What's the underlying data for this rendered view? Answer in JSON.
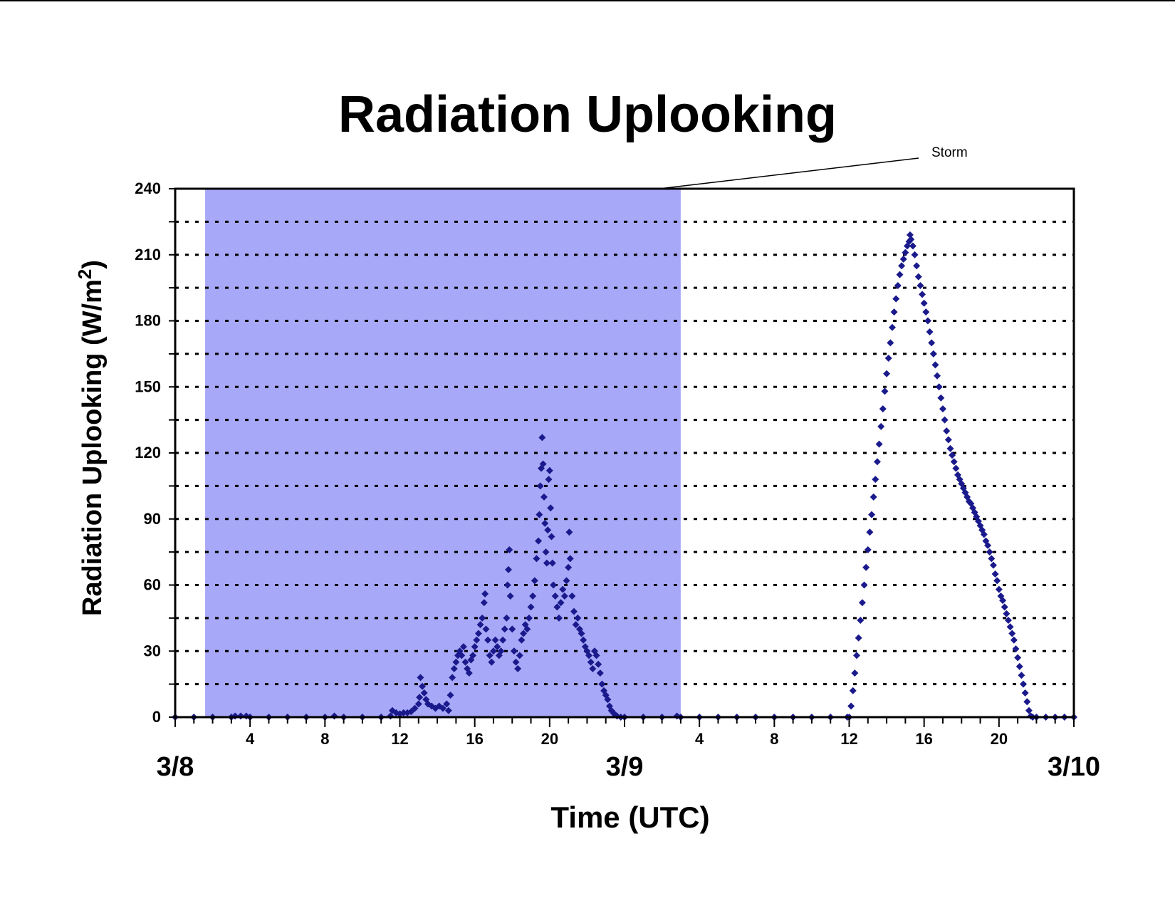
{
  "chart_data": {
    "type": "scatter",
    "title": "Radiation Uplooking",
    "xlabel": "Time (UTC)",
    "ylabel": "Radiation Uplooking (W/m",
    "ylabel_sup": "2",
    "ylabel_close": ")",
    "ylim": [
      0,
      240
    ],
    "y_ticks": [
      0,
      30,
      60,
      90,
      120,
      150,
      180,
      210,
      240
    ],
    "y_minor_step": 15,
    "xlim_hours": [
      0,
      48
    ],
    "x_hour_labels": [
      {
        "h": 4,
        "label": "4"
      },
      {
        "h": 8,
        "label": "8"
      },
      {
        "h": 12,
        "label": "12"
      },
      {
        "h": 16,
        "label": "16"
      },
      {
        "h": 20,
        "label": "20"
      },
      {
        "h": 28,
        "label": "4"
      },
      {
        "h": 32,
        "label": "8"
      },
      {
        "h": 36,
        "label": "12"
      },
      {
        "h": 40,
        "label": "16"
      },
      {
        "h": 44,
        "label": "20"
      }
    ],
    "x_date_labels": [
      {
        "h": 0,
        "label": "3/8"
      },
      {
        "h": 24,
        "label": "3/9"
      },
      {
        "h": 48,
        "label": "3/10"
      }
    ],
    "grid": "horizontal-dotted",
    "marker_color": "#1a1a8c",
    "storm": {
      "label": "Storm",
      "start_h": 1.6,
      "end_h": 27.0,
      "color": "#a8a8f8"
    },
    "series": [
      {
        "points": [
          [
            0,
            0
          ],
          [
            1,
            0
          ],
          [
            2,
            0
          ],
          [
            3,
            0
          ],
          [
            3.2,
            0.5
          ],
          [
            3.5,
            0.5
          ],
          [
            3.8,
            0.5
          ],
          [
            4,
            0
          ],
          [
            5,
            0
          ],
          [
            6,
            0
          ],
          [
            7,
            0
          ],
          [
            8,
            0
          ],
          [
            8.5,
            0.5
          ],
          [
            9,
            0
          ],
          [
            10,
            0
          ],
          [
            11,
            0
          ],
          [
            11.5,
            0.5
          ],
          [
            11.6,
            3
          ],
          [
            11.8,
            2
          ],
          [
            12,
            1.5
          ],
          [
            12.2,
            2
          ],
          [
            12.4,
            2
          ],
          [
            12.6,
            2.5
          ],
          [
            12.8,
            4
          ],
          [
            13,
            6
          ],
          [
            13.05,
            9
          ],
          [
            13.1,
            18
          ],
          [
            13.2,
            14
          ],
          [
            13.3,
            11
          ],
          [
            13.4,
            8
          ],
          [
            13.5,
            6
          ],
          [
            13.7,
            5
          ],
          [
            13.9,
            4
          ],
          [
            14.1,
            5
          ],
          [
            14.3,
            4
          ],
          [
            14.5,
            6
          ],
          [
            14.6,
            3
          ],
          [
            14.7,
            10
          ],
          [
            14.8,
            18
          ],
          [
            14.9,
            22
          ],
          [
            15.0,
            25
          ],
          [
            15.1,
            28
          ],
          [
            15.2,
            30
          ],
          [
            15.3,
            28
          ],
          [
            15.4,
            32
          ],
          [
            15.5,
            25
          ],
          [
            15.6,
            22
          ],
          [
            15.7,
            20
          ],
          [
            15.8,
            26
          ],
          [
            15.9,
            28
          ],
          [
            16.0,
            32
          ],
          [
            16.1,
            35
          ],
          [
            16.2,
            38
          ],
          [
            16.3,
            42
          ],
          [
            16.4,
            45
          ],
          [
            16.5,
            52
          ],
          [
            16.55,
            56
          ],
          [
            16.6,
            40
          ],
          [
            16.7,
            35
          ],
          [
            16.8,
            28
          ],
          [
            16.9,
            25
          ],
          [
            17.0,
            30
          ],
          [
            17.1,
            35
          ],
          [
            17.2,
            32
          ],
          [
            17.3,
            28
          ],
          [
            17.4,
            30
          ],
          [
            17.5,
            35
          ],
          [
            17.6,
            40
          ],
          [
            17.7,
            45
          ],
          [
            17.75,
            60
          ],
          [
            17.8,
            67
          ],
          [
            17.85,
            76
          ],
          [
            17.9,
            55
          ],
          [
            18.0,
            40
          ],
          [
            18.1,
            30
          ],
          [
            18.2,
            25
          ],
          [
            18.3,
            22
          ],
          [
            18.4,
            28
          ],
          [
            18.5,
            35
          ],
          [
            18.6,
            38
          ],
          [
            18.7,
            42
          ],
          [
            18.8,
            40
          ],
          [
            18.9,
            45
          ],
          [
            19.0,
            50
          ],
          [
            19.1,
            55
          ],
          [
            19.2,
            62
          ],
          [
            19.3,
            72
          ],
          [
            19.4,
            80
          ],
          [
            19.45,
            92
          ],
          [
            19.5,
            105
          ],
          [
            19.55,
            113
          ],
          [
            19.6,
            127
          ],
          [
            19.65,
            115
          ],
          [
            19.7,
            100
          ],
          [
            19.75,
            88
          ],
          [
            19.8,
            75
          ],
          [
            19.85,
            70
          ],
          [
            19.9,
            85
          ],
          [
            19.95,
            108
          ],
          [
            20.0,
            112
          ],
          [
            20.05,
            95
          ],
          [
            20.1,
            82
          ],
          [
            20.15,
            70
          ],
          [
            20.2,
            60
          ],
          [
            20.3,
            55
          ],
          [
            20.4,
            50
          ],
          [
            20.5,
            45
          ],
          [
            20.6,
            52
          ],
          [
            20.7,
            58
          ],
          [
            20.8,
            55
          ],
          [
            20.9,
            62
          ],
          [
            21.0,
            68
          ],
          [
            21.05,
            84
          ],
          [
            21.1,
            72
          ],
          [
            21.2,
            55
          ],
          [
            21.3,
            48
          ],
          [
            21.4,
            42
          ],
          [
            21.5,
            45
          ],
          [
            21.6,
            40
          ],
          [
            21.7,
            38
          ],
          [
            21.8,
            35
          ],
          [
            21.9,
            32
          ],
          [
            22.0,
            30
          ],
          [
            22.1,
            28
          ],
          [
            22.2,
            25
          ],
          [
            22.3,
            22
          ],
          [
            22.4,
            30
          ],
          [
            22.5,
            28
          ],
          [
            22.6,
            24
          ],
          [
            22.7,
            20
          ],
          [
            22.8,
            15
          ],
          [
            22.9,
            12
          ],
          [
            23.0,
            10
          ],
          [
            23.1,
            8
          ],
          [
            23.2,
            5
          ],
          [
            23.3,
            3
          ],
          [
            23.4,
            2
          ],
          [
            23.5,
            1
          ],
          [
            23.6,
            0.5
          ],
          [
            23.8,
            0
          ],
          [
            24,
            0
          ],
          [
            25,
            0
          ],
          [
            26,
            0
          ],
          [
            26.8,
            0.5
          ],
          [
            27,
            0
          ],
          [
            28,
            0
          ],
          [
            29,
            0
          ],
          [
            30,
            0
          ],
          [
            31,
            0
          ],
          [
            32,
            0
          ],
          [
            33,
            0
          ],
          [
            34,
            0
          ],
          [
            35,
            0
          ],
          [
            35.9,
            0
          ],
          [
            36.0,
            0
          ],
          [
            36.1,
            5
          ],
          [
            36.2,
            12
          ],
          [
            36.3,
            20
          ],
          [
            36.4,
            28
          ],
          [
            36.5,
            36
          ],
          [
            36.6,
            44
          ],
          [
            36.7,
            52
          ],
          [
            36.8,
            60
          ],
          [
            36.9,
            68
          ],
          [
            37.0,
            76
          ],
          [
            37.1,
            84
          ],
          [
            37.2,
            92
          ],
          [
            37.3,
            100
          ],
          [
            37.4,
            108
          ],
          [
            37.5,
            116
          ],
          [
            37.6,
            124
          ],
          [
            37.7,
            132
          ],
          [
            37.8,
            140
          ],
          [
            37.9,
            148
          ],
          [
            38.0,
            156
          ],
          [
            38.1,
            163
          ],
          [
            38.2,
            170
          ],
          [
            38.3,
            177
          ],
          [
            38.4,
            184
          ],
          [
            38.5,
            190
          ],
          [
            38.6,
            196
          ],
          [
            38.7,
            201
          ],
          [
            38.8,
            205
          ],
          [
            38.9,
            208
          ],
          [
            39.0,
            211
          ],
          [
            39.1,
            214
          ],
          [
            39.2,
            216
          ],
          [
            39.25,
            219
          ],
          [
            39.3,
            217
          ],
          [
            39.4,
            214
          ],
          [
            39.5,
            210
          ],
          [
            39.6,
            205
          ],
          [
            39.7,
            200
          ],
          [
            39.8,
            196
          ],
          [
            39.9,
            192
          ],
          [
            40.0,
            188
          ],
          [
            40.1,
            184
          ],
          [
            40.2,
            180
          ],
          [
            40.3,
            175
          ],
          [
            40.4,
            170
          ],
          [
            40.5,
            165
          ],
          [
            40.6,
            160
          ],
          [
            40.7,
            155
          ],
          [
            40.8,
            150
          ],
          [
            40.9,
            145
          ],
          [
            41.0,
            140
          ],
          [
            41.1,
            135
          ],
          [
            41.2,
            130
          ],
          [
            41.3,
            126
          ],
          [
            41.4,
            122
          ],
          [
            41.5,
            119
          ],
          [
            41.6,
            116
          ],
          [
            41.7,
            113
          ],
          [
            41.8,
            110
          ],
          [
            41.9,
            108
          ],
          [
            42.0,
            106
          ],
          [
            42.1,
            104
          ],
          [
            42.2,
            102
          ],
          [
            42.3,
            100
          ],
          [
            42.4,
            98
          ],
          [
            42.5,
            97
          ],
          [
            42.6,
            95
          ],
          [
            42.7,
            93
          ],
          [
            42.8,
            91
          ],
          [
            42.9,
            89
          ],
          [
            43.0,
            87
          ],
          [
            43.1,
            85
          ],
          [
            43.2,
            83
          ],
          [
            43.3,
            80
          ],
          [
            43.4,
            78
          ],
          [
            43.5,
            75
          ],
          [
            43.6,
            72
          ],
          [
            43.7,
            69
          ],
          [
            43.8,
            65
          ],
          [
            43.9,
            62
          ],
          [
            44.0,
            58
          ],
          [
            44.1,
            55
          ],
          [
            44.2,
            53
          ],
          [
            44.3,
            50
          ],
          [
            44.4,
            47
          ],
          [
            44.5,
            44
          ],
          [
            44.6,
            41
          ],
          [
            44.7,
            38
          ],
          [
            44.8,
            35
          ],
          [
            44.9,
            31
          ],
          [
            45.0,
            27
          ],
          [
            45.1,
            23
          ],
          [
            45.2,
            19
          ],
          [
            45.3,
            15
          ],
          [
            45.4,
            11
          ],
          [
            45.5,
            7
          ],
          [
            45.6,
            3
          ],
          [
            45.7,
            0.5
          ],
          [
            45.8,
            0
          ],
          [
            46,
            0
          ],
          [
            46.5,
            0
          ],
          [
            47,
            0
          ],
          [
            47.5,
            0
          ],
          [
            48,
            0
          ]
        ]
      }
    ]
  }
}
